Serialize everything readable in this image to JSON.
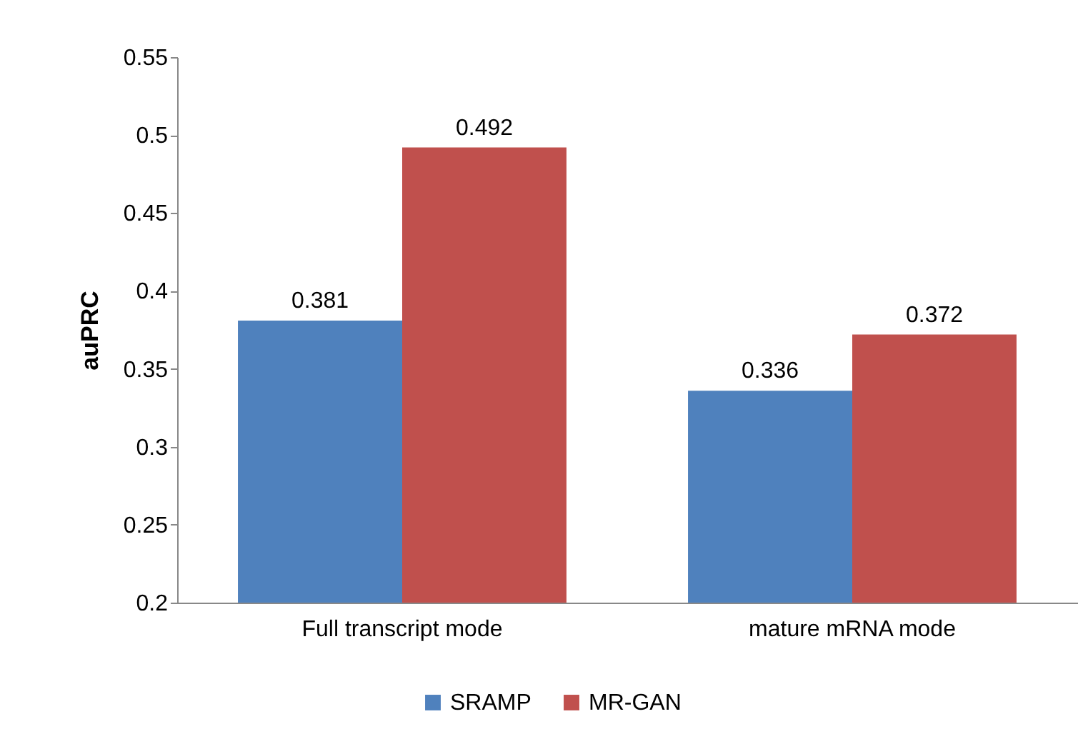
{
  "chart_data": {
    "type": "bar",
    "ylabel": "auPRC",
    "categories": [
      "Full transcript mode",
      "mature mRNA mode"
    ],
    "series": [
      {
        "name": "SRAMP",
        "color": "#4f81bd",
        "values": [
          0.381,
          0.336
        ]
      },
      {
        "name": "MR-GAN",
        "color": "#c0504d",
        "values": [
          0.492,
          0.372
        ]
      }
    ],
    "ylim": [
      0.2,
      0.55
    ],
    "yticks": [
      0.2,
      0.25,
      0.3,
      0.35,
      0.4,
      0.45,
      0.5,
      0.55
    ],
    "data_labels": true,
    "legend": "bottom",
    "grid": false
  }
}
